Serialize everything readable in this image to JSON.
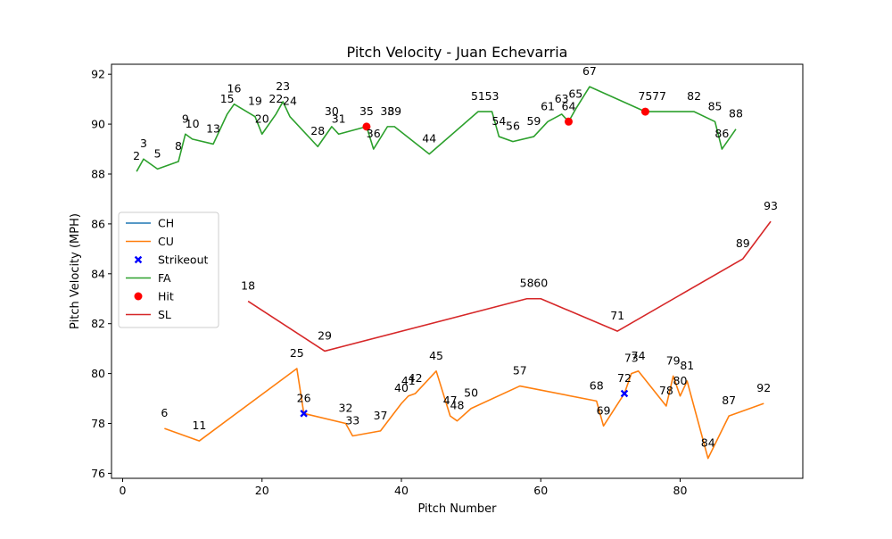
{
  "chart_data": {
    "type": "line",
    "title": "Pitch Velocity - Juan Echevarria",
    "xlabel": "Pitch Number",
    "ylabel": "Pitch Velocity (MPH)",
    "xlim": [
      -1.6,
      97.6
    ],
    "ylim": [
      75.8,
      92.4
    ],
    "xticks": [
      0,
      20,
      40,
      60,
      80
    ],
    "yticks": [
      76,
      78,
      80,
      82,
      84,
      86,
      88,
      90,
      92
    ],
    "grid": false,
    "legend_position": "center-left",
    "legend_entries": [
      "CH",
      "CU",
      "Strikeout",
      "FA",
      "Hit",
      "SL"
    ],
    "series": [
      {
        "name": "CH",
        "kind": "line",
        "color": "#1f77b4",
        "x": [],
        "y": []
      },
      {
        "name": "CU",
        "kind": "line",
        "color": "#ff7f0e",
        "x": [
          6,
          11,
          25,
          26,
          32,
          33,
          37,
          40,
          41,
          42,
          45,
          47,
          48,
          50,
          57,
          68,
          69,
          72,
          73,
          74,
          78,
          79,
          80,
          81,
          84,
          87,
          92
        ],
        "y": [
          77.8,
          77.3,
          80.2,
          78.4,
          78.0,
          77.5,
          77.7,
          78.8,
          79.1,
          79.2,
          80.1,
          78.3,
          78.1,
          78.6,
          79.5,
          78.9,
          77.9,
          79.2,
          80.0,
          80.1,
          78.7,
          79.9,
          79.1,
          79.7,
          76.6,
          78.3,
          78.8
        ]
      },
      {
        "name": "Strikeout",
        "kind": "scatter",
        "marker": "X",
        "color": "#0000ff",
        "x": [
          26,
          72
        ],
        "y": [
          78.4,
          79.2
        ]
      },
      {
        "name": "FA",
        "kind": "line",
        "color": "#2ca02c",
        "x": [
          2,
          3,
          5,
          8,
          9,
          10,
          13,
          15,
          16,
          19,
          20,
          22,
          23,
          24,
          28,
          30,
          31,
          35,
          36,
          38,
          39,
          44,
          51,
          53,
          54,
          56,
          59,
          61,
          63,
          64,
          65,
          67,
          75,
          77,
          82,
          85,
          86,
          88
        ],
        "y": [
          88.1,
          88.6,
          88.2,
          88.5,
          89.6,
          89.4,
          89.2,
          90.4,
          90.8,
          90.3,
          89.6,
          90.4,
          90.9,
          90.3,
          89.1,
          89.9,
          89.6,
          89.9,
          89.0,
          89.9,
          89.9,
          88.8,
          90.5,
          90.5,
          89.5,
          89.3,
          89.5,
          90.1,
          90.4,
          90.1,
          90.6,
          91.5,
          90.5,
          90.5,
          90.5,
          90.1,
          89.0,
          89.8
        ]
      },
      {
        "name": "Hit",
        "kind": "scatter",
        "marker": "o",
        "color": "#ff0000",
        "x": [
          35,
          64,
          75
        ],
        "y": [
          89.9,
          90.1,
          90.5
        ]
      },
      {
        "name": "SL",
        "kind": "line",
        "color": "#d62728",
        "x": [
          18,
          29,
          58,
          60,
          71,
          89,
          93
        ],
        "y": [
          82.9,
          80.9,
          83.0,
          83.0,
          81.7,
          84.6,
          86.1
        ]
      }
    ],
    "point_labels": [
      {
        "text": "2",
        "x": 2,
        "y": 88.1
      },
      {
        "text": "3",
        "x": 3,
        "y": 88.6
      },
      {
        "text": "5",
        "x": 5,
        "y": 88.2
      },
      {
        "text": "6",
        "x": 6,
        "y": 77.8
      },
      {
        "text": "8",
        "x": 8,
        "y": 88.5
      },
      {
        "text": "9",
        "x": 9,
        "y": 89.6
      },
      {
        "text": "10",
        "x": 10,
        "y": 89.4
      },
      {
        "text": "11",
        "x": 11,
        "y": 77.3
      },
      {
        "text": "13",
        "x": 13,
        "y": 89.2
      },
      {
        "text": "15",
        "x": 15,
        "y": 90.4
      },
      {
        "text": "16",
        "x": 16,
        "y": 90.8
      },
      {
        "text": "18",
        "x": 18,
        "y": 82.9
      },
      {
        "text": "19",
        "x": 19,
        "y": 90.3
      },
      {
        "text": "20",
        "x": 20,
        "y": 89.6
      },
      {
        "text": "22",
        "x": 22,
        "y": 90.4
      },
      {
        "text": "23",
        "x": 23,
        "y": 90.9
      },
      {
        "text": "24",
        "x": 24,
        "y": 90.3
      },
      {
        "text": "25",
        "x": 25,
        "y": 80.2
      },
      {
        "text": "26",
        "x": 26,
        "y": 78.4
      },
      {
        "text": "28",
        "x": 28,
        "y": 89.1
      },
      {
        "text": "29",
        "x": 29,
        "y": 80.9
      },
      {
        "text": "30",
        "x": 30,
        "y": 89.9
      },
      {
        "text": "31",
        "x": 31,
        "y": 89.6
      },
      {
        "text": "32",
        "x": 32,
        "y": 78.0
      },
      {
        "text": "33",
        "x": 33,
        "y": 77.5
      },
      {
        "text": "35",
        "x": 35,
        "y": 89.9
      },
      {
        "text": "36",
        "x": 36,
        "y": 89.0
      },
      {
        "text": "37",
        "x": 37,
        "y": 77.7
      },
      {
        "text": "38",
        "x": 38,
        "y": 89.9
      },
      {
        "text": "39",
        "x": 39,
        "y": 89.9
      },
      {
        "text": "40",
        "x": 40,
        "y": 78.8
      },
      {
        "text": "41",
        "x": 41,
        "y": 79.1
      },
      {
        "text": "42",
        "x": 42,
        "y": 79.2
      },
      {
        "text": "44",
        "x": 44,
        "y": 88.8
      },
      {
        "text": "45",
        "x": 45,
        "y": 80.1
      },
      {
        "text": "47",
        "x": 47,
        "y": 78.3
      },
      {
        "text": "48",
        "x": 48,
        "y": 78.1
      },
      {
        "text": "50",
        "x": 50,
        "y": 78.6
      },
      {
        "text": "51",
        "x": 51,
        "y": 90.5
      },
      {
        "text": "53",
        "x": 53,
        "y": 90.5
      },
      {
        "text": "54",
        "x": 54,
        "y": 89.5
      },
      {
        "text": "56",
        "x": 56,
        "y": 89.3
      },
      {
        "text": "57",
        "x": 57,
        "y": 79.5
      },
      {
        "text": "58",
        "x": 58,
        "y": 83.0
      },
      {
        "text": "59",
        "x": 59,
        "y": 89.5
      },
      {
        "text": "60",
        "x": 60,
        "y": 83.0
      },
      {
        "text": "61",
        "x": 61,
        "y": 90.1
      },
      {
        "text": "63",
        "x": 63,
        "y": 90.4
      },
      {
        "text": "64",
        "x": 64,
        "y": 90.1
      },
      {
        "text": "65",
        "x": 65,
        "y": 90.6
      },
      {
        "text": "67",
        "x": 67,
        "y": 91.5
      },
      {
        "text": "68",
        "x": 68,
        "y": 78.9
      },
      {
        "text": "69",
        "x": 69,
        "y": 77.9
      },
      {
        "text": "71",
        "x": 71,
        "y": 81.7
      },
      {
        "text": "72",
        "x": 72,
        "y": 79.2
      },
      {
        "text": "73",
        "x": 73,
        "y": 80.0
      },
      {
        "text": "74",
        "x": 74,
        "y": 80.1
      },
      {
        "text": "75",
        "x": 75,
        "y": 90.5
      },
      {
        "text": "77",
        "x": 77,
        "y": 90.5
      },
      {
        "text": "78",
        "x": 78,
        "y": 78.7
      },
      {
        "text": "79",
        "x": 79,
        "y": 79.9
      },
      {
        "text": "80",
        "x": 80,
        "y": 79.1
      },
      {
        "text": "81",
        "x": 81,
        "y": 79.7
      },
      {
        "text": "82",
        "x": 82,
        "y": 90.5
      },
      {
        "text": "84",
        "x": 84,
        "y": 76.6
      },
      {
        "text": "85",
        "x": 85,
        "y": 90.1
      },
      {
        "text": "86",
        "x": 86,
        "y": 89.0
      },
      {
        "text": "87",
        "x": 87,
        "y": 78.3
      },
      {
        "text": "88",
        "x": 88,
        "y": 89.8
      },
      {
        "text": "89",
        "x": 89,
        "y": 84.6
      },
      {
        "text": "92",
        "x": 92,
        "y": 78.8
      },
      {
        "text": "93",
        "x": 93,
        "y": 86.1
      }
    ]
  }
}
